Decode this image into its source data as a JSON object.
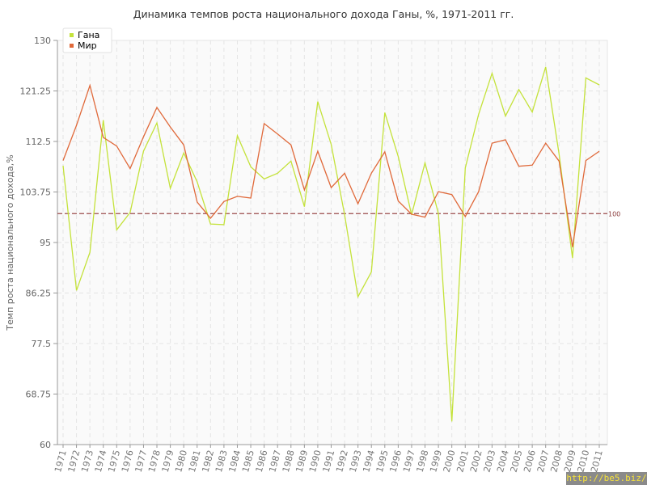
{
  "chart_data": {
    "type": "line",
    "title": "Динамика темпов роста национального дохода Ганы, %, 1971-2011 гг.",
    "xlabel": "",
    "ylabel": "Темп роста национального дохода,%",
    "ylim": [
      60,
      130
    ],
    "yticks": [
      "60",
      "68.75",
      "77.5",
      "86.25",
      "95",
      "103.75",
      "112.5",
      "121.25",
      "130"
    ],
    "x": [
      1971,
      1972,
      1973,
      1974,
      1975,
      1976,
      1977,
      1978,
      1979,
      1980,
      1981,
      1982,
      1983,
      1984,
      1985,
      1986,
      1987,
      1988,
      1989,
      1990,
      1991,
      1992,
      1993,
      1994,
      1995,
      1996,
      1997,
      1998,
      1999,
      2000,
      2001,
      2002,
      2003,
      2004,
      2005,
      2006,
      2007,
      2008,
      2009,
      2010,
      2011
    ],
    "series": [
      {
        "name": "Гана",
        "color": "#c4e23a",
        "values": [
          108.3,
          86.7,
          93.3,
          116.2,
          97.2,
          100.2,
          110.8,
          115.7,
          104.4,
          110.5,
          105.5,
          98.2,
          98.1,
          113.5,
          108.1,
          106.0,
          107.0,
          109.1,
          101.2,
          119.4,
          112.0,
          99.8,
          85.6,
          89.9,
          117.5,
          109.9,
          99.8,
          108.8,
          100.0,
          64.0,
          107.9,
          117.2,
          124.3,
          116.9,
          121.5,
          117.6,
          125.4,
          110.3,
          92.3,
          123.5,
          122.3
        ]
      },
      {
        "name": "Мир",
        "color": "#e0693a",
        "values": [
          109.2,
          115.3,
          122.2,
          113.2,
          111.7,
          107.8,
          113.3,
          118.4,
          115.0,
          111.9,
          102.0,
          99.2,
          102.1,
          103.0,
          102.7,
          115.6,
          113.8,
          111.9,
          104.1,
          110.8,
          104.5,
          107.0,
          101.7,
          107.0,
          110.7,
          102.2,
          99.9,
          99.4,
          103.8,
          103.3,
          99.5,
          103.8,
          112.2,
          112.8,
          108.2,
          108.4,
          112.2,
          109.1,
          94.2,
          109.2,
          110.8
        ]
      }
    ],
    "reference_line": {
      "value": 100,
      "label": "100",
      "color": "#9a4a4a"
    },
    "legend_position": "top-left",
    "grid": true
  },
  "watermark": "http://be5.biz/"
}
